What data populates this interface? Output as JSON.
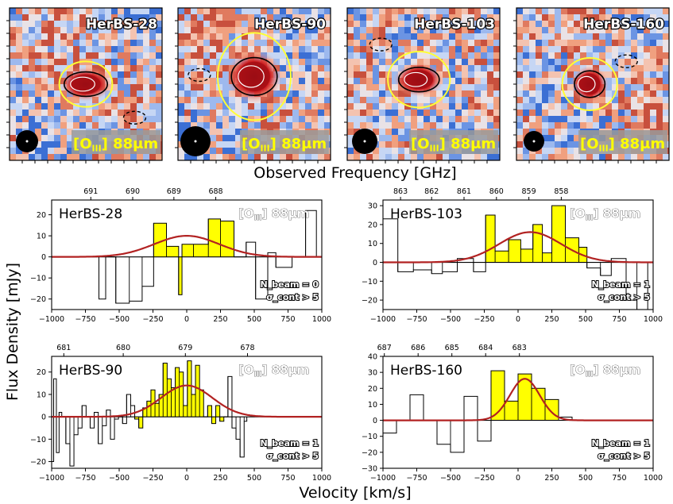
{
  "figure": {
    "top_xlabel": "Observed Frequency [GHz]",
    "ylabel": "Flux Density [mJy]",
    "xlabel": "Velocity [km/s]"
  },
  "colors": {
    "fill": "#ffff00",
    "gauss": "#b22222",
    "contour_yellow": "#ffff33",
    "map_red": "#e07a5f",
    "map_blue": "#7fa3e8",
    "core": "#a50f15"
  },
  "maps": [
    {
      "name": "HerBS-28",
      "line_label": "[OIII] 88μm"
    },
    {
      "name": "HerBS-90",
      "line_label": "[OIII] 88μm"
    },
    {
      "name": "HerBS-103",
      "line_label": "[OIII] 88μm"
    },
    {
      "name": "HerBS-160",
      "line_label": "[OIII] 88μm"
    }
  ],
  "chart_data": [
    {
      "type": "bar",
      "title": "HerBS-28",
      "line_label": "[OIII] 88μm",
      "annotation_beam": "N_beam = 0",
      "annotation_cont": "σ_cont > 5",
      "xlabel": "Velocity [km/s]",
      "ylabel": "Flux Density [mJy]",
      "xlim": [
        -1000,
        1000
      ],
      "ylim": [
        -25,
        27
      ],
      "xticks": [
        -1000,
        -750,
        -500,
        -250,
        0,
        250,
        500,
        750,
        1000
      ],
      "yticks": [
        -20,
        -10,
        0,
        10,
        20
      ],
      "top_axis": {
        "label": "Observed Frequency [GHz]",
        "ticks": [
          {
            "v": -710,
            "label": "691"
          },
          {
            "v": -400,
            "label": "690"
          },
          {
            "v": -95,
            "label": "689"
          },
          {
            "v": 215,
            "label": "688"
          }
        ]
      },
      "steps": {
        "edges": [
          -700,
          -650,
          -600,
          -525,
          -425,
          -330,
          -245,
          -150,
          -60,
          -35,
          50,
          160,
          250,
          350,
          440,
          510,
          600,
          660,
          780,
          880,
          960
        ],
        "values": [
          0,
          -20,
          0,
          -22,
          -21,
          -14,
          16,
          5,
          -18,
          6,
          6,
          18,
          17,
          0,
          7,
          -20,
          2,
          -5,
          0,
          22
        ]
      },
      "fill_range": [
        -245,
        350
      ],
      "gaussian": {
        "amp": 10,
        "center": 0,
        "sigma": 240
      }
    },
    {
      "type": "bar",
      "title": "HerBS-103",
      "line_label": "[OIII] 88μm",
      "annotation_beam": "N_beam = 1",
      "annotation_cont": "σ_cont > 5",
      "xlabel": "Velocity [km/s]",
      "ylabel": "Flux Density [mJy]",
      "xlim": [
        -1000,
        1000
      ],
      "ylim": [
        -25,
        33
      ],
      "xticks": [
        -1000,
        -750,
        -500,
        -250,
        0,
        250,
        500,
        750,
        1000
      ],
      "yticks": [
        -20,
        -10,
        0,
        10,
        20,
        30
      ],
      "top_axis": {
        "label": "Observed Frequency [GHz]",
        "ticks": [
          {
            "v": -870,
            "label": "863"
          },
          {
            "v": -640,
            "label": "862"
          },
          {
            "v": -400,
            "label": "861"
          },
          {
            "v": -160,
            "label": "860"
          },
          {
            "v": 80,
            "label": "859"
          },
          {
            "v": 320,
            "label": "858"
          }
        ]
      },
      "steps": {
        "edges": [
          -1000,
          -890,
          -775,
          -640,
          -560,
          -450,
          -330,
          -240,
          -170,
          -70,
          20,
          110,
          180,
          250,
          350,
          450,
          510,
          610,
          690,
          800,
          880,
          960
        ],
        "values": [
          23,
          -5,
          -4,
          -6,
          -5,
          2,
          -5,
          25,
          6,
          12,
          7,
          20,
          5,
          30,
          13,
          8,
          -3,
          -7,
          2,
          -20,
          -30
        ]
      },
      "fill_range": [
        -240,
        510
      ],
      "gaussian": {
        "amp": 16,
        "center": 90,
        "sigma": 230
      }
    },
    {
      "type": "bar",
      "title": "HerBS-90",
      "line_label": "[OIII] 88μm",
      "annotation_beam": "N_beam = 1",
      "annotation_cont": "σ_cont > 5",
      "xlabel": "Velocity [km/s]",
      "ylabel": "Flux Density [mJy]",
      "xlim": [
        -1000,
        1000
      ],
      "ylim": [
        -23,
        27
      ],
      "xticks": [
        -1000,
        -750,
        -500,
        -250,
        0,
        250,
        500,
        750,
        1000
      ],
      "yticks": [
        -20,
        -10,
        0,
        10,
        20
      ],
      "top_axis": {
        "label": "Observed Frequency [GHz]",
        "ticks": [
          {
            "v": -910,
            "label": "681"
          },
          {
            "v": -470,
            "label": "680"
          },
          {
            "v": -10,
            "label": "679"
          },
          {
            "v": 450,
            "label": "678"
          }
        ]
      },
      "steps": {
        "edges": [
          -1000,
          -985,
          -965,
          -945,
          -925,
          -895,
          -865,
          -835,
          -805,
          -775,
          -745,
          -715,
          -685,
          -655,
          -625,
          -595,
          -565,
          -535,
          -505,
          -475,
          -445,
          -415,
          -385,
          -355,
          -325,
          -295,
          -265,
          -235,
          -205,
          -175,
          -145,
          -115,
          -85,
          -55,
          -25,
          5,
          35,
          65,
          95,
          125,
          155,
          185,
          215,
          245,
          275,
          305,
          335,
          365,
          395,
          425,
          445
        ],
        "values": [
          -20,
          17,
          -16,
          2,
          0,
          -12,
          -22,
          -8,
          -5,
          5,
          0,
          -5,
          2,
          -12,
          -4,
          3,
          -10,
          -1,
          0,
          -3,
          10,
          5,
          -1,
          -5,
          4,
          7,
          12,
          6,
          10,
          24,
          17,
          13,
          22,
          20,
          5,
          25,
          10,
          23,
          12,
          0,
          5,
          -3,
          5,
          -2,
          0,
          18,
          -5,
          -10,
          -18,
          -2
        ]
      },
      "fill_range": [
        -385,
        300
      ],
      "gaussian": {
        "amp": 14,
        "center": 0,
        "sigma": 190
      }
    },
    {
      "type": "bar",
      "title": "HerBS-160",
      "line_label": "[OIII] 88μm",
      "annotation_beam": "N_beam = 1",
      "annotation_cont": "σ_cont > 5",
      "xlabel": "Velocity [km/s]",
      "ylabel": "Flux Density [mJy]",
      "xlim": [
        -1000,
        1000
      ],
      "ylim": [
        -30,
        40
      ],
      "xticks": [
        -1000,
        -750,
        -500,
        -250,
        0,
        250,
        500,
        750,
        1000
      ],
      "yticks": [
        -30,
        -20,
        -10,
        0,
        10,
        20,
        30,
        40
      ],
      "top_axis": {
        "label": "Observed Frequency [GHz]",
        "ticks": [
          {
            "v": -990,
            "label": "687"
          },
          {
            "v": -740,
            "label": "686"
          },
          {
            "v": -490,
            "label": "685"
          },
          {
            "v": -240,
            "label": "684"
          },
          {
            "v": 10,
            "label": "683"
          }
        ]
      },
      "steps": {
        "edges": [
          -1000,
          -900,
          -800,
          -700,
          -600,
          -500,
          -400,
          -300,
          -200,
          -100,
          0,
          100,
          200,
          300,
          400,
          500,
          600,
          700,
          800,
          900,
          1000
        ],
        "values": [
          -8,
          0,
          16,
          0,
          -15,
          -20,
          15,
          -13,
          31,
          12,
          29,
          20,
          13,
          2,
          0,
          0,
          0,
          0,
          0,
          0
        ]
      },
      "fill_range": [
        -200,
        300
      ],
      "gaussian": {
        "amp": 26,
        "center": 50,
        "sigma": 110
      }
    }
  ]
}
